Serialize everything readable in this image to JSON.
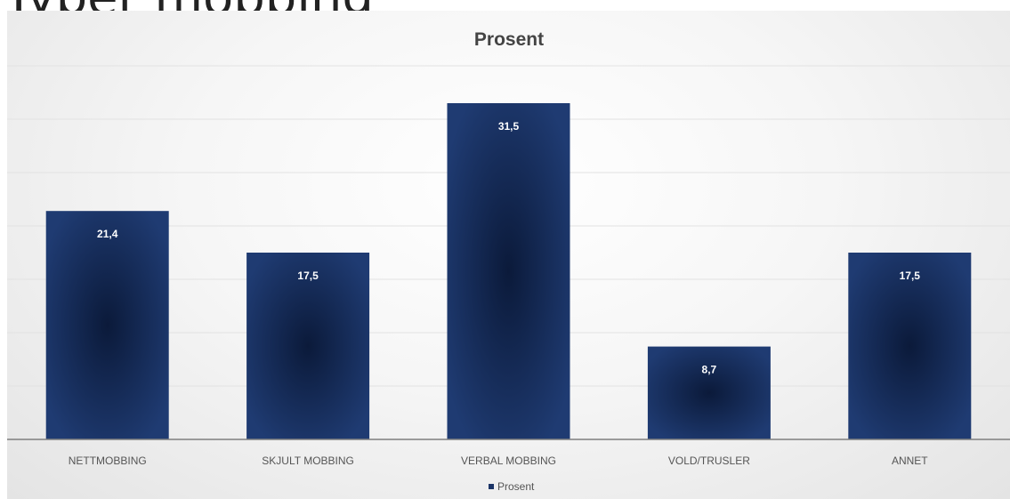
{
  "chart_data": {
    "type": "bar",
    "title": "Prosent",
    "categories": [
      "NETTMOBBING",
      "SKJULT MOBBING",
      "VERBAL MOBBING",
      "VOLD/TRUSLER",
      "ANNET"
    ],
    "series": [
      {
        "name": "Prosent",
        "values": [
          21.4,
          17.5,
          31.5,
          8.7,
          17.5
        ],
        "labels": [
          "21,4",
          "17,5",
          "31,5",
          "8,7",
          "17,5"
        ],
        "color": "#1b3467"
      }
    ],
    "xlabel": "",
    "ylabel": "",
    "ylim": [
      0,
      40
    ],
    "grid": true,
    "legend": "bottom",
    "bar_color_dark": "#0b1a3a",
    "bar_color_light": "#1f3b72"
  }
}
